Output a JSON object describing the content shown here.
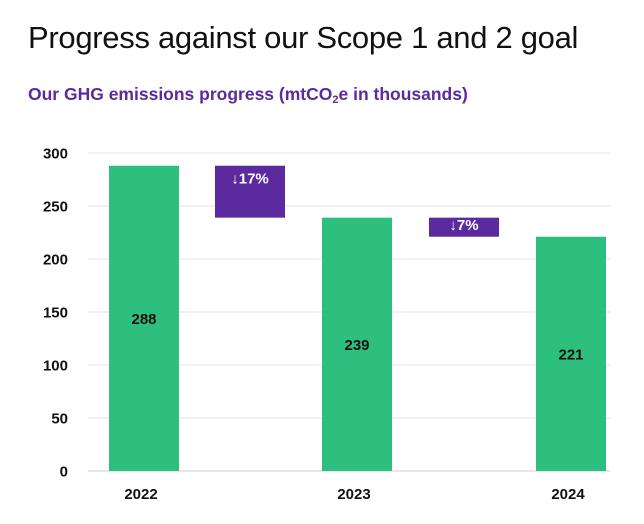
{
  "title": "Progress against our Scope 1 and 2 goal",
  "subtitle": {
    "prefix": "Our GHG emissions progress (mtCO",
    "subscript": "2",
    "suffix": "e in thousands)"
  },
  "colors": {
    "bar": "#2dbf7d",
    "change_box": "#5b2a9e",
    "gridline": "#e3e3e3",
    "title": "#111111",
    "subtitle": "#5b2a9e"
  },
  "chart_data": {
    "type": "bar",
    "categories": [
      "2022",
      "2023",
      "2024"
    ],
    "values": [
      288,
      239,
      221
    ],
    "data_labels": [
      "288",
      "239",
      "221"
    ],
    "ylim": [
      0,
      300
    ],
    "yticks": [
      0,
      50,
      100,
      150,
      200,
      250,
      300
    ],
    "grid": true,
    "legend": "none",
    "changes": [
      {
        "label": "↓17%",
        "from": 288,
        "to": 239
      },
      {
        "label": "↓7%",
        "from": 239,
        "to": 221
      }
    ]
  }
}
